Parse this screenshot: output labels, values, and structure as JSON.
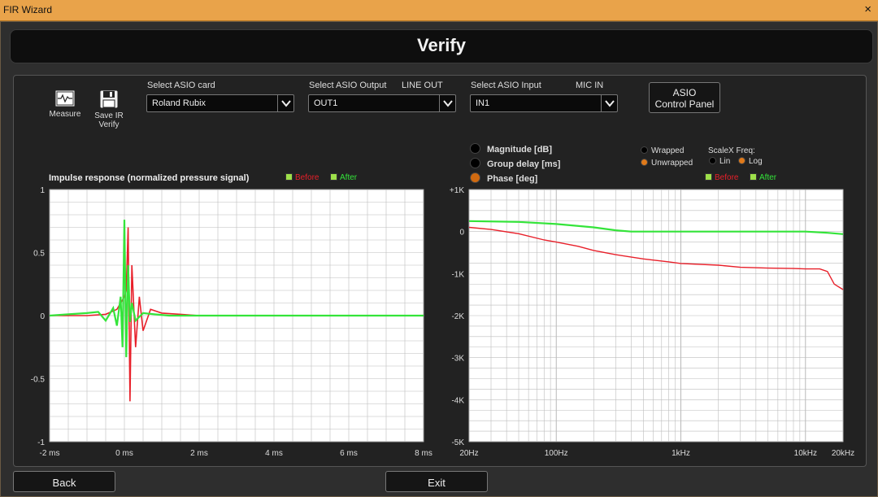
{
  "window": {
    "title": "FIR Wizard",
    "close_glyph": "×"
  },
  "header": {
    "title": "Verify"
  },
  "toolbar": {
    "measure_label": "Measure",
    "save_label_1": "Save IR",
    "save_label_2": "Verify"
  },
  "asio_card": {
    "label": "Select ASIO card",
    "value": "Roland Rubix"
  },
  "asio_output": {
    "label": "Select ASIO Output",
    "hint": "LINE OUT",
    "value": "OUT1"
  },
  "asio_input": {
    "label": "Select ASIO Input",
    "hint": "MIC IN",
    "value": "IN1"
  },
  "control_panel": {
    "line1": "ASIO",
    "line2": "Control Panel"
  },
  "left_plot": {
    "title": "Impulse response (normalized pressure signal)",
    "legend_before": "Before",
    "legend_after": "After"
  },
  "right_plot": {
    "mode_magnitude": "Magnitude [dB]",
    "mode_group_delay": "Group delay [ms]",
    "mode_phase": "Phase [deg]",
    "wrapped": "Wrapped",
    "unwrapped": "Unwrapped",
    "scalex_label": "ScaleX Freq:",
    "scale_lin": "Lin",
    "scale_log": "Log",
    "legend_before": "Before",
    "legend_after": "After"
  },
  "footer": {
    "back_label": "Back",
    "exit_label": "Exit"
  },
  "colors": {
    "before": "#e8202a",
    "after": "#34e43a",
    "accent": "#e07a1a"
  },
  "chart_data": [
    {
      "type": "line",
      "title": "Impulse response (normalized pressure signal)",
      "xlabel": "",
      "ylabel": "",
      "xlim": [
        -2,
        8
      ],
      "ylim": [
        -1,
        1
      ],
      "x_ticks": [
        -2,
        0,
        2,
        4,
        6,
        8
      ],
      "x_tick_labels": [
        "-2 ms",
        "0 ms",
        "2 ms",
        "4 ms",
        "6 ms",
        "8 ms"
      ],
      "y_ticks": [
        1,
        0.5,
        0,
        -0.5,
        -1
      ],
      "y_tick_labels": [
        "1",
        "0.5",
        "0",
        "-0.5",
        "-1"
      ],
      "grid": true,
      "series": [
        {
          "name": "Before",
          "x": [
            -2,
            -1,
            -0.5,
            -0.2,
            -0.1,
            0,
            0.05,
            0.1,
            0.15,
            0.2,
            0.3,
            0.4,
            0.5,
            0.7,
            1,
            1.5,
            2,
            4,
            8
          ],
          "y": [
            0,
            0,
            0.01,
            0.05,
            0.1,
            0.15,
            0.2,
            0.7,
            -0.68,
            0.4,
            -0.25,
            0.15,
            -0.12,
            0.05,
            0.02,
            0.01,
            0,
            0,
            0
          ]
        },
        {
          "name": "After",
          "x": [
            -2,
            -1.5,
            -1,
            -0.7,
            -0.5,
            -0.3,
            -0.2,
            -0.1,
            -0.05,
            0,
            0.05,
            0.1,
            0.15,
            0.2,
            0.3,
            0.5,
            0.8,
            1.2,
            2,
            4,
            8
          ],
          "y": [
            0,
            0.01,
            0.02,
            0.03,
            -0.04,
            0.06,
            -0.08,
            0.15,
            -0.25,
            0.76,
            -0.33,
            0.4,
            -0.05,
            0.1,
            -0.04,
            0.02,
            0.01,
            0,
            0,
            0,
            0
          ]
        }
      ]
    },
    {
      "type": "line",
      "title": "",
      "xlabel": "",
      "ylabel": "",
      "x_scale": "log",
      "xlim": [
        20,
        20000
      ],
      "ylim": [
        -5000,
        1000
      ],
      "x_tick_values": [
        20,
        100,
        1000,
        10000,
        20000
      ],
      "x_tick_labels": [
        "20Hz",
        "100Hz",
        "1kHz",
        "10kHz",
        "20kHz"
      ],
      "y_ticks": [
        1000,
        0,
        -1000,
        -2000,
        -3000,
        -4000,
        -5000
      ],
      "y_tick_labels": [
        "+1K",
        "0",
        "-1K",
        "-2K",
        "-3K",
        "-4K",
        "-5K"
      ],
      "grid": true,
      "series": [
        {
          "name": "Before",
          "x": [
            20,
            30,
            50,
            80,
            100,
            150,
            200,
            300,
            500,
            800,
            1000,
            2000,
            3000,
            5000,
            8000,
            10000,
            13000,
            15000,
            17000,
            20000
          ],
          "y": [
            100,
            50,
            -50,
            -200,
            -250,
            -350,
            -450,
            -550,
            -650,
            -720,
            -760,
            -800,
            -850,
            -870,
            -880,
            -890,
            -890,
            -950,
            -1250,
            -1380
          ]
        },
        {
          "name": "After",
          "x": [
            20,
            50,
            100,
            200,
            300,
            400,
            500,
            1000,
            2000,
            5000,
            10000,
            15000,
            20000
          ],
          "y": [
            250,
            230,
            180,
            100,
            30,
            0,
            0,
            0,
            0,
            0,
            0,
            -30,
            -60
          ]
        }
      ]
    }
  ]
}
